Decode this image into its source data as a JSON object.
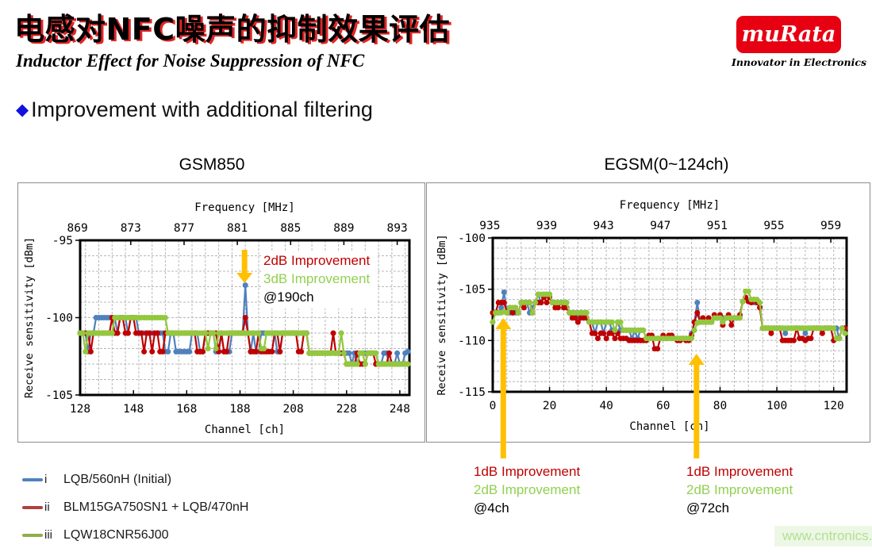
{
  "header": {
    "title_zh": "电感对NFC噪声的抑制效果评估",
    "subtitle_en": "Inductor Effect for Noise Suppression of NFC",
    "bullet_text": "Improvement with additional filtering",
    "bullet_glyph": "◆"
  },
  "logo": {
    "brand": "muRata",
    "tagline": "Innovator in Electronics",
    "bg_color": "#e60012",
    "text_color": "#ffffff"
  },
  "legend": {
    "items": [
      {
        "numeral": "i",
        "label": "LQB/560nH (Initial)",
        "color": "#4f81bd"
      },
      {
        "numeral": "ii",
        "label": "BLM15GA750SN1 + LQB/470nH",
        "color": "#b0413f"
      },
      {
        "numeral": "iii",
        "label": "LQW18CNR56J00",
        "color": "#8fae4a"
      }
    ]
  },
  "watermark": {
    "text": "www.cntronics.com"
  },
  "colors": {
    "series_blue": "#4f81bd",
    "series_red": "#c00000",
    "series_green": "#92c83d",
    "arrow_orange": "#ffc000",
    "gridline": "#b8b8b8"
  },
  "chart_data": [
    {
      "type": "line",
      "title": "GSM850",
      "top_axis": {
        "label": "Frequency [MHz]",
        "ticks": [
          869,
          873,
          877,
          881,
          885,
          889,
          893
        ],
        "f_at_first_channel": 869.2,
        "mhz_per_ch": 0.2
      },
      "x_axis": {
        "label": "Channel [ch]",
        "ticks": [
          128,
          148,
          168,
          188,
          208,
          228,
          248
        ],
        "range": [
          128,
          251
        ]
      },
      "y_axis": {
        "label": "Receive sensitivity [dBm]",
        "ticks": [
          -95,
          -100,
          -105
        ],
        "range": [
          -95,
          -105
        ]
      },
      "grid": {
        "x_step_ch": 5,
        "y_step_db": 1,
        "style": "dashed"
      },
      "series": [
        {
          "name": "LQB/560nH (Initial)",
          "color": "#4f81bd",
          "ch_start": 128,
          "values": [
            -101,
            -101,
            -101,
            -102.2,
            -101,
            -101,
            -100,
            -100,
            -100,
            -100,
            -100,
            -100,
            -100,
            -100,
            -101,
            -100,
            -100,
            -100,
            -101,
            -100,
            -100,
            -100,
            -101,
            -101,
            -101,
            -101,
            -101,
            -101,
            -101,
            -101,
            -101,
            -101,
            -102.2,
            -102.2,
            -101,
            -101,
            -102.2,
            -102.2,
            -102.2,
            -102.2,
            -102.2,
            -102.2,
            -101,
            -101,
            -101,
            -102.2,
            -102.2,
            -101,
            -101,
            -101,
            -101,
            -102.2,
            -102.2,
            -101,
            -102.2,
            -102.2,
            -102.2,
            -101,
            -101,
            -101,
            -101,
            -101,
            -97.9,
            -101,
            -102.2,
            -101,
            -102.2,
            -102.2,
            -101,
            -101,
            -101,
            -101,
            -101,
            -101,
            -102.2,
            -102.2,
            -101,
            -101,
            -101,
            -101,
            -101,
            -101,
            -101,
            -101,
            -101,
            -101,
            -102.3,
            -102.3,
            -102.3,
            -102.3,
            -102.3,
            -102.3,
            -102.3,
            -102.3,
            -102.3,
            -102.3,
            -102.3,
            -102.3,
            -102.3,
            -102.3,
            -102.3,
            -102.3,
            -103,
            -102.3,
            -103,
            -102.3,
            -102.3,
            -102.3,
            -102.3,
            -102.3,
            -102.3,
            -102.3,
            -103,
            -103,
            -102.3,
            -102.3,
            -103,
            -103,
            -103,
            -102.3,
            -103,
            -103,
            -102.3,
            -102.2
          ]
        },
        {
          "name": "BLM15GA750SN1 + LQB/470nH",
          "color": "#c00000",
          "ch_start": 128,
          "values": [
            -101,
            -101,
            -101,
            -101,
            -102.2,
            -101,
            -101,
            -101,
            -101,
            -101,
            -101,
            -101,
            -100,
            -101,
            -101,
            -100,
            -100,
            -101,
            -101,
            -100,
            -100,
            -101,
            -101,
            -101,
            -102.2,
            -101,
            -101,
            -102.2,
            -101,
            -101,
            -102.2,
            -102.2,
            -101,
            -101,
            -101,
            -101,
            -101,
            -101,
            -101,
            -101,
            -101,
            -101,
            -101,
            -101,
            -102.2,
            -102.2,
            -102.2,
            -101,
            -101,
            -101,
            -101,
            -101,
            -102.2,
            -101,
            -102.2,
            -102.2,
            -101,
            -101,
            -101,
            -101,
            -101,
            -101,
            -100,
            -101,
            -102.2,
            -102.2,
            -102.2,
            -101,
            -102.2,
            -102.2,
            -102.2,
            -102.2,
            -102.2,
            -101,
            -101,
            -102.2,
            -101,
            -101,
            -101,
            -101,
            -101,
            -101,
            -102.2,
            -102.2,
            -101,
            -101,
            -102.3,
            -102.3,
            -102.3,
            -102.3,
            -102.3,
            -102.3,
            -102.3,
            -102.3,
            -102.3,
            -101,
            -102.3,
            -102.3,
            -102.3,
            -102.3,
            -103,
            -103,
            -103,
            -103,
            -102.3,
            -103,
            -103,
            -103,
            -102.3,
            -102.3,
            -102.3,
            -103,
            -103,
            -103,
            -103,
            -103,
            -102.3,
            -103,
            -103,
            -103,
            -103,
            -103,
            -103,
            -103
          ]
        },
        {
          "name": "LQW18CNR56J00",
          "color": "#92c83d",
          "ch_start": 128,
          "values": [
            -101,
            -101,
            -102.2,
            -101,
            -101,
            -101,
            -101,
            -101,
            -101,
            -101,
            -101,
            -101,
            -101,
            -100,
            -100,
            -100,
            -100,
            -100,
            -100,
            -100,
            -100,
            -100,
            -100,
            -100,
            -100,
            -100,
            -100,
            -100,
            -100,
            -100,
            -100,
            -100,
            -100,
            -101,
            -101,
            -101,
            -101,
            -101,
            -101,
            -101,
            -101,
            -101,
            -101,
            -101,
            -101,
            -101,
            -101,
            -101,
            -102,
            -101,
            -101,
            -102,
            -101,
            -101,
            -101,
            -101,
            -101,
            -101,
            -101,
            -101,
            -101,
            -101,
            -101,
            -101,
            -101,
            -101,
            -101,
            -101,
            -102,
            -102,
            -101,
            -101,
            -101,
            -101,
            -101,
            -101,
            -101,
            -101,
            -101,
            -101,
            -101,
            -101,
            -101,
            -101,
            -101,
            -101,
            -102.3,
            -102.3,
            -102.3,
            -102.3,
            -102.3,
            -102.3,
            -102.3,
            -102.3,
            -102.3,
            -102.3,
            -102.3,
            -102.3,
            -101,
            -102.3,
            -103,
            -103,
            -103,
            -103,
            -103,
            -102.3,
            -102.3,
            -103,
            -102.3,
            -102.3,
            -102.3,
            -102.3,
            -103,
            -103,
            -103,
            -103,
            -103,
            -103,
            -103,
            -103,
            -103,
            -103,
            -103,
            -103
          ]
        }
      ],
      "annotations": [
        {
          "arrow_ch": 190,
          "arrow_dir": "down",
          "lines": [
            {
              "text": "2dB Improvement",
              "color": "#c00000"
            },
            {
              "text": "3dB Improvement",
              "color": "#92d050"
            },
            {
              "text": "@190ch",
              "color": "#000000"
            }
          ]
        }
      ]
    },
    {
      "type": "line",
      "title": "EGSM(0~124ch)",
      "top_axis": {
        "label": "Frequency [MHz]",
        "ticks": [
          935,
          939,
          943,
          947,
          951,
          955,
          959
        ],
        "f_at_first_channel": 935.2,
        "mhz_per_ch": 0.2
      },
      "x_axis": {
        "label": "Channel [ch]",
        "ticks": [
          0,
          20,
          40,
          60,
          80,
          100,
          120
        ],
        "range": [
          0,
          124
        ]
      },
      "y_axis": {
        "label": "Receive sensitivity [dBm]",
        "ticks": [
          -100,
          -105,
          -110,
          -115
        ],
        "range": [
          -100,
          -115
        ]
      },
      "grid": {
        "x_step_ch": 5,
        "y_step_db": 1,
        "style": "dashed"
      },
      "series": [
        {
          "name": "LQB/560nH (Initial)",
          "color": "#4f81bd",
          "ch_start": 0,
          "values": [
            -107.3,
            -107.3,
            -107.3,
            -106.8,
            -105.3,
            -107.3,
            -107.3,
            -107.3,
            -107.3,
            -107.3,
            -106.3,
            -106.3,
            -106.3,
            -107.3,
            -106.8,
            -106.3,
            -105.5,
            -106.3,
            -105.5,
            -105.5,
            -105.5,
            -106.3,
            -106.3,
            -106.3,
            -106.3,
            -106.3,
            -106.3,
            -107.3,
            -107.3,
            -107.3,
            -107.8,
            -107.3,
            -107.3,
            -107.3,
            -108.2,
            -108.2,
            -109.3,
            -108.2,
            -108.2,
            -109.3,
            -108.2,
            -108.2,
            -109,
            -109,
            -108.2,
            -109,
            -109,
            -109,
            -109,
            -109.8,
            -109,
            -109.8,
            -109,
            -109,
            -109.8,
            -109.8,
            -109.8,
            -109.8,
            -109.8,
            -109.8,
            -109.8,
            -109.8,
            -109.8,
            -109.8,
            -109.8,
            -109.8,
            -109.8,
            -109.8,
            -109.8,
            -109.8,
            -109.3,
            -108.2,
            -106.3,
            -108.2,
            -108.2,
            -108.2,
            -108.2,
            -108.2,
            -107.8,
            -107.8,
            -107.8,
            -107.8,
            -107.8,
            -107.8,
            -107.8,
            -107.8,
            -107.8,
            -107.8,
            -106.2,
            -105.8,
            -106.2,
            -106.2,
            -106.3,
            -106.3,
            -106.8,
            -108.8,
            -108.8,
            -108.8,
            -108.8,
            -108.8,
            -108.8,
            -108.8,
            -108.8,
            -109.3,
            -108.8,
            -108.8,
            -108.8,
            -108.8,
            -108.8,
            -108.8,
            -109.3,
            -108.8,
            -108.8,
            -108.8,
            -108.8,
            -108.8,
            -108.8,
            -108.8,
            -108.8,
            -108.8,
            -108.8,
            -108.8,
            -109.8,
            -108.8,
            -108.8
          ]
        },
        {
          "name": "BLM15GA750SN1 + LQB/470nH",
          "color": "#c00000",
          "ch_start": 0,
          "values": [
            -107.3,
            -107.3,
            -106.3,
            -106.3,
            -106.3,
            -107.3,
            -106.8,
            -107.3,
            -106.8,
            -107.3,
            -106.3,
            -106.8,
            -106.3,
            -106.3,
            -107.3,
            -106.3,
            -106.3,
            -106.3,
            -105.8,
            -106.3,
            -105.8,
            -106.3,
            -106.8,
            -106.8,
            -106.3,
            -106.8,
            -106.8,
            -107.3,
            -107.8,
            -107.8,
            -108.2,
            -107.8,
            -107.8,
            -107.8,
            -108.2,
            -109.3,
            -109.3,
            -109.8,
            -109.3,
            -109.3,
            -109.8,
            -109.3,
            -109.3,
            -109.8,
            -109.3,
            -109.8,
            -109.8,
            -109.8,
            -110,
            -110,
            -110,
            -110,
            -110,
            -110,
            -110,
            -109.5,
            -109.5,
            -110.8,
            -110.8,
            -109.8,
            -109.5,
            -109.8,
            -109.5,
            -109.5,
            -109.8,
            -110,
            -110,
            -109.8,
            -110,
            -110,
            -109.5,
            -108.2,
            -107.3,
            -108.2,
            -107.8,
            -108.2,
            -107.8,
            -108.2,
            -107.5,
            -107.8,
            -107.5,
            -108.5,
            -107.8,
            -107.5,
            -108.5,
            -107.8,
            -107.8,
            -107.5,
            -106.2,
            -105.8,
            -106.2,
            -106.3,
            -106,
            -106.3,
            -106.8,
            -108.8,
            -108.8,
            -108.8,
            -109.3,
            -108.8,
            -108.8,
            -108.8,
            -110,
            -110,
            -110,
            -110,
            -110,
            -108.8,
            -109.8,
            -109.8,
            -110,
            -109.8,
            -109.8,
            -108.8,
            -108.8,
            -108.8,
            -109.3,
            -108.8,
            -108.8,
            -108.8,
            -110,
            -109.8,
            -109.8,
            -108.8,
            -108.8
          ]
        },
        {
          "name": "LQW18CNR56J00",
          "color": "#92c83d",
          "ch_start": 0,
          "values": [
            -108.2,
            -107.3,
            -107.3,
            -107.3,
            -107.2,
            -107.3,
            -106.8,
            -106.8,
            -106.8,
            -107.3,
            -106.3,
            -106.3,
            -106.3,
            -106.3,
            -107.3,
            -106.3,
            -105.5,
            -105.5,
            -105.5,
            -105.5,
            -105.5,
            -106.3,
            -106.3,
            -106.3,
            -106.3,
            -106.3,
            -106.3,
            -107.3,
            -107.3,
            -107.3,
            -107.3,
            -107.3,
            -107.3,
            -107.3,
            -108.2,
            -108.2,
            -108.2,
            -108.2,
            -108.2,
            -108.2,
            -108.2,
            -108.2,
            -108.2,
            -109,
            -108.2,
            -108.2,
            -109,
            -109,
            -109,
            -109,
            -109,
            -109,
            -109,
            -109,
            -109.8,
            -109.8,
            -109.8,
            -109.8,
            -109.8,
            -109.8,
            -109.8,
            -109.8,
            -109.8,
            -109.8,
            -109.8,
            -109.8,
            -109.8,
            -109.8,
            -109.8,
            -109.8,
            -109.8,
            -109,
            -108.3,
            -108.2,
            -108.2,
            -108.2,
            -108.2,
            -108.2,
            -107.8,
            -107.8,
            -107.8,
            -108.2,
            -107.8,
            -107.8,
            -107.8,
            -107.8,
            -107.8,
            -107.8,
            -106.2,
            -105.2,
            -105.2,
            -106,
            -106,
            -106,
            -106.3,
            -108.8,
            -108.8,
            -108.8,
            -108.8,
            -108.8,
            -108.8,
            -108.8,
            -108.8,
            -108.8,
            -108.8,
            -108.8,
            -108.8,
            -108.8,
            -108.8,
            -108.8,
            -108.8,
            -108.8,
            -108.8,
            -108.8,
            -108.8,
            -108.8,
            -108.8,
            -108.8,
            -108.8,
            -108.8,
            -108.8,
            -109.8,
            -109.8,
            -108.8,
            -109.3
          ]
        }
      ],
      "annotations": [
        {
          "arrow_ch": 4,
          "arrow_dir": "up",
          "lines": [
            {
              "text": "1dB Improvement",
              "color": "#c00000"
            },
            {
              "text": "2dB Improvement",
              "color": "#92d050"
            },
            {
              "text": "@4ch",
              "color": "#000000"
            }
          ]
        },
        {
          "arrow_ch": 72,
          "arrow_dir": "up",
          "lines": [
            {
              "text": "1dB Improvement",
              "color": "#c00000"
            },
            {
              "text": "2dB Improvement",
              "color": "#92d050"
            },
            {
              "text": "@72ch",
              "color": "#000000"
            }
          ]
        }
      ]
    }
  ]
}
